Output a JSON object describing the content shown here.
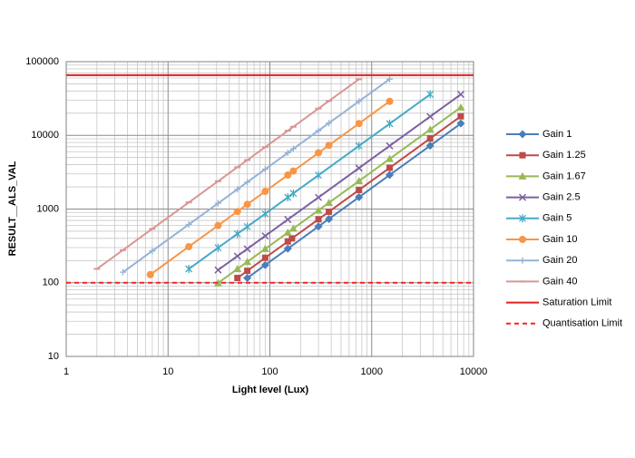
{
  "chart_data": {
    "type": "line",
    "x_label": "Light level (Lux)",
    "y_label": "RESULT__ALS_VAL",
    "xscale": "log",
    "yscale": "log",
    "xlim": [
      1,
      10000
    ],
    "ylim": [
      10,
      100000
    ],
    "xticks": [
      1,
      10,
      100,
      1000,
      10000
    ],
    "yticks": [
      10,
      100,
      1000,
      10000,
      100000
    ],
    "grid": true,
    "minor_grid": true,
    "legend": "right",
    "series": [
      {
        "name": "Gain 1",
        "color": "#4a7ebb",
        "marker": "diamond",
        "x": [
          60,
          90,
          150,
          300,
          380,
          750,
          1500,
          3750,
          7500
        ],
        "values": [
          116,
          174,
          290,
          580,
          733,
          1450,
          2900,
          7240,
          14500
        ]
      },
      {
        "name": "Gain 1.25",
        "color": "#be4b48",
        "marker": "square",
        "x": [
          48,
          60,
          90,
          150,
          165,
          300,
          380,
          750,
          1500,
          3750,
          7500
        ],
        "values": [
          116,
          145,
          218,
          363,
          400,
          726,
          920,
          1815,
          3630,
          9075,
          18150
        ]
      },
      {
        "name": "Gain 1.67",
        "color": "#98b954",
        "marker": "triangle",
        "x": [
          31,
          48,
          60,
          90,
          150,
          170,
          300,
          380,
          750,
          1500,
          3750,
          7500
        ],
        "values": [
          99,
          154,
          192,
          288,
          480,
          544,
          960,
          1216,
          2400,
          4800,
          12000,
          24000
        ]
      },
      {
        "name": "Gain 2.5",
        "color": "#7d60a0",
        "marker": "x",
        "x": [
          31,
          48,
          60,
          90,
          150,
          300,
          750,
          1500,
          3750,
          7500
        ],
        "values": [
          149,
          230,
          288,
          432,
          720,
          1440,
          3600,
          7200,
          18000,
          36000
        ]
      },
      {
        "name": "Gain 5",
        "color": "#46aac5",
        "marker": "star",
        "x": [
          16,
          31,
          48,
          60,
          90,
          150,
          170,
          300,
          750,
          1500,
          3750
        ],
        "values": [
          154,
          298,
          461,
          576,
          864,
          1440,
          1632,
          2880,
          7200,
          14400,
          36000
        ]
      },
      {
        "name": "Gain 10",
        "color": "#f79646",
        "marker": "circle",
        "x": [
          6.7,
          16,
          31,
          48,
          60,
          90,
          150,
          170,
          300,
          380,
          750,
          1500
        ],
        "values": [
          129,
          309,
          598,
          926,
          1158,
          1737,
          2895,
          3281,
          5790,
          7334,
          14475,
          28950
        ]
      },
      {
        "name": "Gain 20",
        "color": "#95b3d7",
        "marker": "plus",
        "x": [
          3.6,
          7,
          16,
          31,
          48,
          60,
          90,
          150,
          170,
          300,
          380,
          750,
          1500
        ],
        "values": [
          139,
          270,
          618,
          1197,
          1853,
          2316,
          3474,
          5790,
          6562,
          11580,
          14668,
          28950,
          57900
        ]
      },
      {
        "name": "Gain 40",
        "color": "#d99694",
        "marker": "dash",
        "x": [
          2,
          3.6,
          7,
          16,
          31,
          48,
          60,
          90,
          150,
          170,
          300,
          380,
          750
        ],
        "values": [
          154,
          277,
          539,
          1232,
          2387,
          3696,
          4620,
          6930,
          11550,
          13090,
          23100,
          29260,
          57750
        ]
      },
      {
        "name": "Saturation Limit",
        "color": "#e02020",
        "marker": "none",
        "dashed": false,
        "x": [
          1,
          10000
        ],
        "values": [
          65535,
          65535
        ]
      },
      {
        "name": "Quantisation Limit",
        "color": "#ff2020",
        "marker": "none",
        "dashed": true,
        "x": [
          1,
          10000
        ],
        "values": [
          100,
          100
        ]
      }
    ]
  }
}
